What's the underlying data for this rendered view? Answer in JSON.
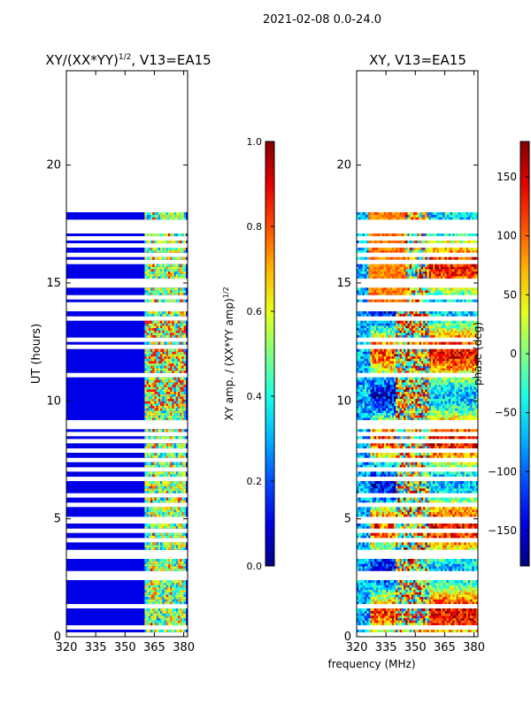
{
  "figure_title": "2021-02-08 0.0-24.0",
  "chart_data": [
    {
      "type": "heatmap",
      "title": "XY/(XX*YY)^{1/2}, V13=EA15",
      "title_main": "XY/(XX*YY)",
      "title_sup": "1/2",
      "title_tail": ", V13=EA15",
      "xlabel": "",
      "ylabel": "UT (hours)",
      "xlim": [
        320,
        382
      ],
      "ylim": [
        0,
        24
      ],
      "xticks": [
        320,
        335,
        350,
        365,
        380
      ],
      "yticks": [
        0,
        5,
        10,
        15,
        20
      ],
      "data_extent_hours": [
        0,
        18
      ],
      "active_band_mhz": [
        360,
        381
      ],
      "colorbar": {
        "label_main": "XY amp. / (XX*YY amp)",
        "label_sup": "1/2",
        "range": [
          0.0,
          1.0
        ],
        "ticks": [
          "0.0",
          "0.2",
          "0.4",
          "0.6",
          "0.8",
          "1.0"
        ],
        "tick_values": [
          0.0,
          0.2,
          0.4,
          0.6,
          0.8,
          1.0
        ]
      }
    },
    {
      "type": "heatmap",
      "title": "XY, V13=EA15",
      "xlabel": "frequency (MHz)",
      "ylabel": "",
      "xlim": [
        320,
        382
      ],
      "ylim": [
        0,
        24
      ],
      "xticks": [
        320,
        335,
        350,
        365,
        380
      ],
      "yticks": [
        0,
        5,
        10,
        15,
        20
      ],
      "data_extent_hours": [
        0,
        18
      ],
      "colorbar": {
        "label": "phase (deg)",
        "range": [
          -180,
          180
        ],
        "ticks": [
          "150",
          "100",
          "50",
          "0",
          "−50",
          "−100",
          "−150"
        ],
        "tick_values": [
          150,
          100,
          50,
          0,
          -50,
          -100,
          -150
        ]
      }
    }
  ],
  "flagged_hours": [
    0.1,
    0.4,
    1.3,
    2.5,
    2.7,
    3.4,
    3.6,
    4.1,
    4.5,
    4.9,
    5.0,
    5.6,
    6.0,
    6.7,
    7.1,
    7.5,
    7.9,
    8.3,
    8.6,
    8.9,
    9.0,
    9.1,
    11.1,
    12.3,
    12.6,
    13.5,
    13.9,
    14.1,
    14.4,
    14.9,
    15.1,
    15.9,
    16.2,
    16.6,
    16.9,
    17.2,
    17.4,
    17.6
  ]
}
